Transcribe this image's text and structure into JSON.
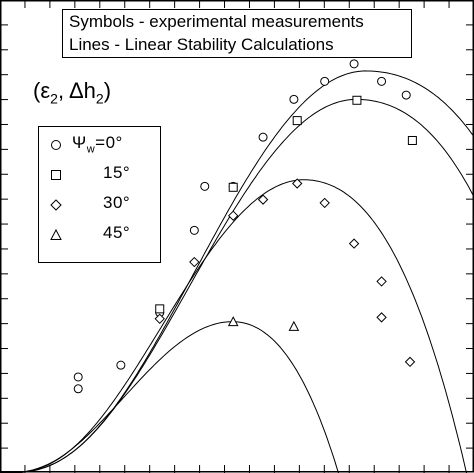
{
  "notes": {
    "line1": "Symbols - experimental measurements",
    "line2": "Lines - Linear Stability Calculations"
  },
  "parameters_label": {
    "open": "(ε",
    "sub1": "2",
    "mid": ", Δh",
    "sub2": "2",
    "close": ")"
  },
  "chart_data": {
    "type": "scatter",
    "title": "",
    "xlabel": "",
    "ylabel": "",
    "xlim": [
      0,
      1
    ],
    "ylim": [
      0,
      1
    ],
    "legend_placement": "left",
    "series": [
      {
        "name": "0°",
        "marker": "circle",
        "points": [
          [
            0.165,
            0.203
          ],
          [
            0.165,
            0.178
          ],
          [
            0.255,
            0.228
          ],
          [
            0.337,
            0.339
          ],
          [
            0.41,
            0.513
          ],
          [
            0.432,
            0.606
          ],
          [
            0.492,
            0.606
          ],
          [
            0.555,
            0.71
          ],
          [
            0.62,
            0.79
          ],
          [
            0.685,
            0.828
          ],
          [
            0.747,
            0.865
          ],
          [
            0.805,
            0.828
          ],
          [
            0.857,
            0.799
          ]
        ],
        "curve_peak": [
          0.77,
          0.85
        ]
      },
      {
        "name": "15°",
        "marker": "square",
        "points": [
          [
            0.337,
            0.347
          ],
          [
            0.492,
            0.604
          ],
          [
            0.627,
            0.745
          ],
          [
            0.753,
            0.788
          ],
          [
            0.87,
            0.703
          ]
        ],
        "curve_peak": [
          0.75,
          0.79
        ]
      },
      {
        "name": "30°",
        "marker": "diamond",
        "points": [
          [
            0.337,
            0.326
          ],
          [
            0.41,
            0.446
          ],
          [
            0.492,
            0.544
          ],
          [
            0.555,
            0.578
          ],
          [
            0.627,
            0.612
          ],
          [
            0.685,
            0.571
          ],
          [
            0.747,
            0.485
          ],
          [
            0.805,
            0.405
          ],
          [
            0.805,
            0.329
          ],
          [
            0.865,
            0.235
          ]
        ],
        "curve_peak": [
          0.64,
          0.62
        ]
      },
      {
        "name": "45°",
        "marker": "triangle",
        "points": [
          [
            0.492,
            0.32
          ],
          [
            0.62,
            0.31
          ]
        ],
        "curve_peak": [
          0.49,
          0.32
        ]
      }
    ],
    "legend_title": "Ψw=",
    "legend_first_label": "Ψw=0°",
    "legend_labels": [
      "15°",
      "30°",
      "45°"
    ],
    "grid": false
  },
  "colors": {
    "ink": "#000000",
    "background": "#ffffff"
  }
}
